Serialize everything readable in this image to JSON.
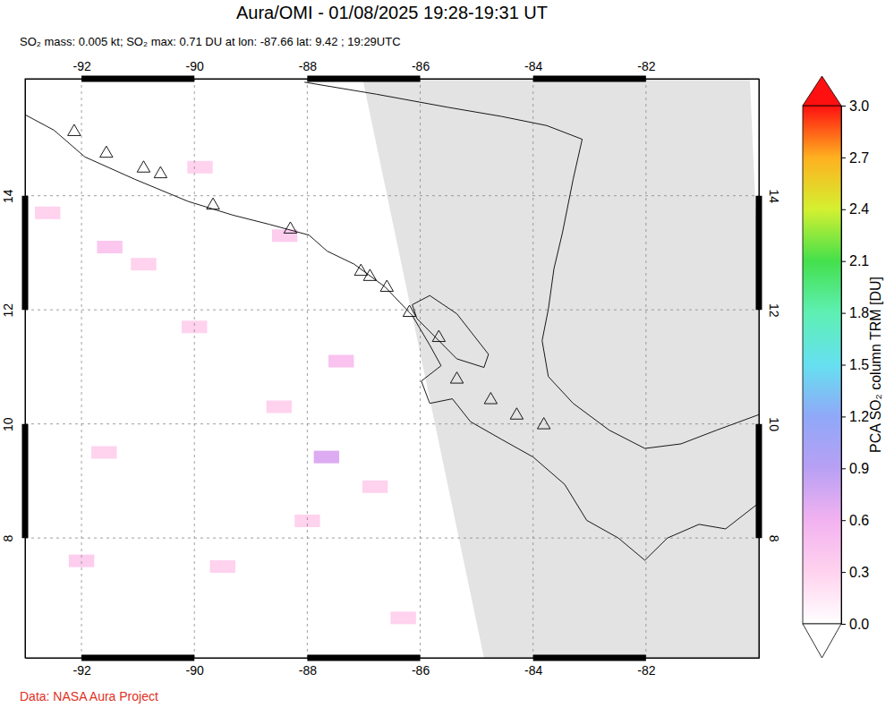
{
  "chart_data": {
    "type": "map",
    "title": "Aura/OMI - 01/08/2025 19:28-19:31 UT",
    "subtitle": "SO₂ mass: 0.005 kt; SO₂ max: 0.71 DU at lon: -87.66 lat: 9.42 ; 19:29UTC",
    "footer": "Data: NASA Aura Project",
    "xlim": [
      -93,
      -80
    ],
    "ylim": [
      5.9,
      16.05
    ],
    "xticks": [
      -92,
      -90,
      -88,
      -86,
      -84,
      -82
    ],
    "yticks": [
      8,
      10,
      12,
      14
    ],
    "grid": true,
    "colorbar": {
      "label": "PCA SO₂ column TRM [DU]",
      "range": [
        0,
        3
      ],
      "ticks": [
        {
          "value": 0,
          "label": "0.0"
        },
        {
          "value": 0.3,
          "label": "0.3"
        },
        {
          "value": 0.6,
          "label": "0.6"
        },
        {
          "value": 0.9,
          "label": "0.9"
        },
        {
          "value": 1.2,
          "label": "1.2"
        },
        {
          "value": 1.5,
          "label": "1.5"
        },
        {
          "value": 1.8,
          "label": "1.8"
        },
        {
          "value": 2.1,
          "label": "2.1"
        },
        {
          "value": 2.4,
          "label": "2.4"
        },
        {
          "value": 2.7,
          "label": "2.7"
        },
        {
          "value": 3,
          "label": "3.0"
        }
      ],
      "colors": [
        "#ffffff",
        "#ffd2ee",
        "#f2b2f0",
        "#b8a0f4",
        "#90a8f8",
        "#66e0f0",
        "#5ef0b4",
        "#44e04c",
        "#d4f030",
        "#ffb020",
        "#ff1010"
      ]
    },
    "no_data_region": [
      [
        -87.02,
        16.05
      ],
      [
        -80.16,
        16.05
      ],
      [
        -80.0,
        12.5
      ],
      [
        -80.0,
        5.9
      ],
      [
        -84.87,
        5.9
      ]
    ],
    "pixels": [
      {
        "lon": -87.66,
        "lat": 9.42,
        "value": 0.71
      },
      {
        "lon": -88.4,
        "lat": 13.3,
        "value": 0.35
      },
      {
        "lon": -89.9,
        "lat": 14.5,
        "value": 0.3
      },
      {
        "lon": -91.5,
        "lat": 13.1,
        "value": 0.4
      },
      {
        "lon": -90.9,
        "lat": 12.8,
        "value": 0.3
      },
      {
        "lon": -87.4,
        "lat": 11.1,
        "value": 0.45
      },
      {
        "lon": -88.5,
        "lat": 10.3,
        "value": 0.3
      },
      {
        "lon": -91.6,
        "lat": 9.5,
        "value": 0.3
      },
      {
        "lon": -92.0,
        "lat": 7.6,
        "value": 0.35
      },
      {
        "lon": -89.5,
        "lat": 7.5,
        "value": 0.3
      },
      {
        "lon": -86.8,
        "lat": 8.9,
        "value": 0.3
      },
      {
        "lon": -90.0,
        "lat": 11.7,
        "value": 0.3
      },
      {
        "lon": -88.0,
        "lat": 8.3,
        "value": 0.3
      },
      {
        "lon": -86.3,
        "lat": 6.6,
        "value": 0.3
      },
      {
        "lon": -92.6,
        "lat": 13.7,
        "value": 0.3
      }
    ],
    "volcanoes": [
      {
        "lon": -92.13,
        "lat": 15.12
      },
      {
        "lon": -91.56,
        "lat": 14.74
      },
      {
        "lon": -90.9,
        "lat": 14.48
      },
      {
        "lon": -90.6,
        "lat": 14.38
      },
      {
        "lon": -89.67,
        "lat": 13.83
      },
      {
        "lon": -88.3,
        "lat": 13.41
      },
      {
        "lon": -87.05,
        "lat": 12.67
      },
      {
        "lon": -86.89,
        "lat": 12.58
      },
      {
        "lon": -86.59,
        "lat": 12.39
      },
      {
        "lon": -86.19,
        "lat": 11.95
      },
      {
        "lon": -85.67,
        "lat": 11.51
      },
      {
        "lon": -85.35,
        "lat": 10.78
      },
      {
        "lon": -84.75,
        "lat": 10.42
      },
      {
        "lon": -84.29,
        "lat": 10.15
      },
      {
        "lon": -83.81,
        "lat": 9.98
      }
    ],
    "coastlines": [
      {
        "lon": [
          -93.0,
          -92.49,
          -91.94,
          -91.06,
          -90.11,
          -89.32,
          -88.68,
          -87.97,
          -87.65,
          -87.17,
          -86.62,
          -86.14,
          -85.83,
          -85.63,
          -85.98,
          -85.83,
          -85.43,
          -85.11,
          -84.56,
          -84.0,
          -83.44,
          -83.05,
          -82.49,
          -82.02,
          -81.62,
          -81.06,
          -80.59,
          -79.98
        ],
        "lat": [
          15.42,
          15.15,
          14.68,
          14.29,
          13.9,
          13.66,
          13.5,
          13.31,
          13.03,
          12.8,
          12.4,
          11.9,
          11.38,
          11.02,
          10.75,
          10.36,
          10.44,
          10.04,
          9.73,
          9.42,
          8.94,
          8.31,
          8.0,
          7.61,
          8.0,
          8.24,
          8.16,
          8.63
        ]
      },
      {
        "lon": [
          -88.05,
          -86.78,
          -85.51,
          -84.56,
          -83.76,
          -83.13,
          -83.29,
          -83.48,
          -83.63,
          -83.73,
          -83.84,
          -83.73,
          -83.29,
          -82.65,
          -82.02,
          -81.38,
          -80.75,
          -79.98
        ],
        "lat": [
          15.99,
          15.78,
          15.55,
          15.39,
          15.23,
          14.99,
          14.29,
          13.35,
          12.72,
          12.01,
          11.46,
          10.83,
          10.36,
          9.89,
          9.57,
          9.65,
          9.89,
          10.17
        ]
      },
      {
        "lon": [
          -86.14,
          -85.83,
          -85.35,
          -84.79,
          -84.87,
          -85.35,
          -85.75,
          -86.06,
          -86.14
        ],
        "lat": [
          12.09,
          12.25,
          11.93,
          11.22,
          10.99,
          11.14,
          11.54,
          11.85,
          12.09
        ]
      }
    ]
  }
}
